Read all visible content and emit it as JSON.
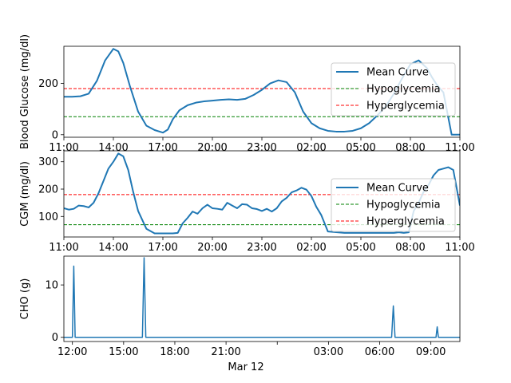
{
  "chart_data": [
    {
      "type": "line",
      "ylabel": "Blood Glucose (mg/dl)",
      "xlabel": "",
      "xlim": [
        0,
        24
      ],
      "ylim": [
        -10,
        345
      ],
      "x_tick_values": [
        0,
        3,
        6,
        9,
        12,
        15,
        18,
        21,
        24
      ],
      "x_tick_labels": [
        "11:00",
        "14:00",
        "17:00",
        "20:00",
        "23:00",
        "02:00",
        "05:00",
        "08:00",
        "11:00"
      ],
      "y_tick_values": [
        0,
        200
      ],
      "y_tick_labels": [
        "0",
        "200"
      ],
      "series": [
        {
          "name": "Mean Curve",
          "color": "#1f77b4",
          "style": "solid",
          "x": [
            0,
            0.5,
            1,
            1.5,
            2,
            2.5,
            3,
            3.3,
            3.6,
            4,
            4.5,
            5,
            5.5,
            6,
            6.3,
            6.6,
            7,
            7.5,
            8,
            8.5,
            9,
            9.5,
            10,
            10.5,
            11,
            11.5,
            12,
            12.5,
            13,
            13.5,
            14,
            14.5,
            15,
            15.5,
            16,
            16.5,
            17,
            17.5,
            18,
            18.5,
            19,
            19.5,
            20,
            20.5,
            21,
            21.5,
            22,
            22.3,
            22.6,
            23,
            23.5,
            24
          ],
          "y": [
            148,
            148,
            150,
            160,
            210,
            290,
            335,
            325,
            280,
            190,
            90,
            35,
            18,
            8,
            20,
            60,
            95,
            115,
            125,
            130,
            133,
            136,
            138,
            136,
            140,
            155,
            175,
            200,
            212,
            205,
            165,
            90,
            45,
            25,
            15,
            12,
            12,
            15,
            25,
            45,
            75,
            110,
            160,
            220,
            275,
            290,
            260,
            225,
            195,
            165,
            0,
            0
          ]
        },
        {
          "name": "Hypoglycemia",
          "color": "#008000",
          "style": "dashed",
          "x": [
            0,
            24
          ],
          "y": [
            70,
            70
          ]
        },
        {
          "name": "Hyperglycemia",
          "color": "#ff0000",
          "style": "dashed",
          "x": [
            0,
            24
          ],
          "y": [
            180,
            180
          ]
        }
      ],
      "legend": [
        "Mean Curve",
        "Hypoglycemia",
        "Hyperglycemia"
      ],
      "legend_position": "right"
    },
    {
      "type": "line",
      "ylabel": "CGM (mg/dl)",
      "xlabel": "",
      "xlim": [
        0,
        24
      ],
      "ylim": [
        25,
        340
      ],
      "x_tick_values": [
        0,
        3,
        6,
        9,
        12,
        15,
        18,
        21,
        24
      ],
      "x_tick_labels": [
        "11:00",
        "14:00",
        "17:00",
        "20:00",
        "23:00",
        "02:00",
        "05:00",
        "08:00",
        "11:00"
      ],
      "y_tick_values": [
        100,
        200,
        300
      ],
      "y_tick_labels": [
        "100",
        "200",
        "300"
      ],
      "series": [
        {
          "name": "Mean Curve",
          "color": "#1f77b4",
          "style": "solid",
          "x": [
            0,
            0.3,
            0.6,
            0.9,
            1.2,
            1.5,
            1.8,
            2.1,
            2.4,
            2.7,
            3.0,
            3.3,
            3.6,
            3.9,
            4.2,
            4.5,
            5.0,
            5.5,
            6.0,
            6.3,
            6.6,
            6.9,
            7.2,
            7.5,
            7.8,
            8.1,
            8.4,
            8.7,
            9.0,
            9.3,
            9.6,
            9.9,
            10.2,
            10.5,
            10.8,
            11.1,
            11.4,
            11.7,
            12.0,
            12.3,
            12.6,
            12.9,
            13.2,
            13.5,
            13.8,
            14.1,
            14.4,
            14.7,
            15.0,
            15.3,
            15.6,
            16.0,
            17.0,
            18.0,
            19.0,
            20.0,
            20.3,
            20.6,
            20.9,
            21.2,
            21.5,
            21.8,
            22.1,
            22.4,
            22.7,
            23.0,
            23.3,
            23.6,
            24.0
          ],
          "y": [
            130,
            125,
            128,
            140,
            138,
            133,
            150,
            185,
            230,
            275,
            300,
            330,
            320,
            270,
            190,
            120,
            55,
            38,
            38,
            38,
            38,
            40,
            75,
            95,
            118,
            110,
            130,
            143,
            130,
            128,
            125,
            150,
            140,
            130,
            145,
            143,
            130,
            127,
            120,
            128,
            118,
            130,
            155,
            168,
            188,
            195,
            205,
            198,
            175,
            135,
            105,
            45,
            40,
            40,
            40,
            40,
            42,
            40,
            42,
            120,
            150,
            190,
            215,
            250,
            270,
            275,
            280,
            270,
            140
          ]
        },
        {
          "name": "Hypoglycemia",
          "color": "#008000",
          "style": "dashed",
          "x": [
            0,
            24
          ],
          "y": [
            70,
            70
          ]
        },
        {
          "name": "Hyperglycemia",
          "color": "#ff0000",
          "style": "dashed",
          "x": [
            0,
            24
          ],
          "y": [
            180,
            180
          ]
        }
      ],
      "legend": [
        "Mean Curve",
        "Hypoglycemia",
        "Hyperglycemia"
      ],
      "legend_position": "right"
    },
    {
      "type": "line",
      "ylabel": "CHO (g)",
      "xlabel": "Mar 12",
      "xlim": [
        11.5,
        34.7
      ],
      "ylim": [
        -0.8,
        15.5
      ],
      "x_tick_values": [
        12,
        15,
        18,
        21,
        24,
        27,
        30,
        33
      ],
      "x_tick_labels": [
        "12:00",
        "15:00",
        "18:00",
        "21:00",
        "",
        "03:00",
        "06:00",
        "09:00"
      ],
      "y_tick_values": [
        0,
        10
      ],
      "y_tick_labels": [
        "0",
        "10"
      ],
      "series": [
        {
          "name": "",
          "color": "#1f77b4",
          "style": "solid",
          "x": [
            11.5,
            12.0,
            12.08,
            12.16,
            16.1,
            16.2,
            16.3,
            30.7,
            30.8,
            30.9,
            33.3,
            33.37,
            33.44,
            34.7
          ],
          "y": [
            0,
            0,
            13.6,
            0,
            0,
            15.2,
            0,
            0,
            6.0,
            0,
            0,
            2.0,
            0,
            0
          ]
        }
      ]
    }
  ]
}
